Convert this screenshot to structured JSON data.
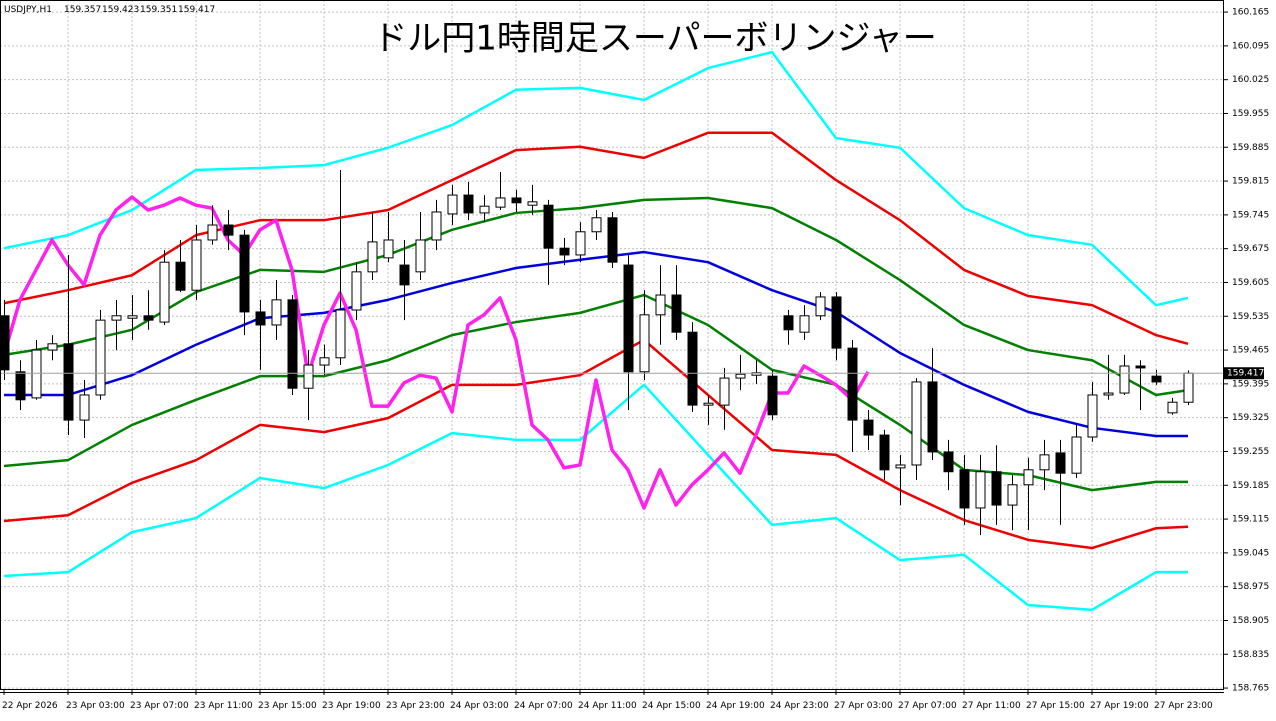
{
  "chart_data": {
    "type": "candlestick",
    "title": "ドル円1時間足スーパーボリンジャー",
    "symbol": "USDJPY,H1",
    "header_values": [
      159.357,
      159.423,
      159.351,
      159.417
    ],
    "last_price": 159.417,
    "ylim": [
      158.761,
      160.19
    ],
    "yticks": [
      160.165,
      160.095,
      160.025,
      159.955,
      159.885,
      159.815,
      159.745,
      159.675,
      159.605,
      159.535,
      159.465,
      159.395,
      159.325,
      159.255,
      159.185,
      159.115,
      159.045,
      158.975,
      158.905,
      158.835,
      158.765
    ],
    "grid": true,
    "categories": [
      "22 Apr 2026",
      null,
      null,
      null,
      "23 Apr 03:00",
      null,
      null,
      null,
      "23 Apr 07:00",
      null,
      null,
      null,
      "23 Apr 11:00",
      null,
      null,
      null,
      "23 Apr 15:00",
      null,
      null,
      null,
      "23 Apr 19:00",
      null,
      null,
      null,
      "23 Apr 23:00",
      null,
      null,
      null,
      "24 Apr 03:00",
      null,
      null,
      null,
      "24 Apr 07:00",
      null,
      null,
      null,
      "24 Apr 11:00",
      null,
      null,
      null,
      "24 Apr 15:00",
      null,
      null,
      null,
      "24 Apr 19:00",
      null,
      null,
      null,
      "24 Apr 23:00",
      null,
      null,
      null,
      "27 Apr 03:00",
      null,
      null,
      null,
      "27 Apr 07:00",
      null,
      null,
      null,
      "27 Apr 11:00",
      null,
      null,
      null,
      "27 Apr 15:00",
      null,
      null,
      null,
      "27 Apr 19:00",
      null,
      null,
      null,
      "27 Apr 23:00",
      null,
      null
    ],
    "open": [
      159.536,
      159.42,
      159.366,
      159.465,
      159.478,
      159.32,
      159.372,
      159.527,
      159.531,
      159.536,
      159.523,
      159.647,
      159.589,
      159.693,
      159.724,
      159.703,
      159.544,
      159.517,
      159.569,
      159.386,
      159.434,
      159.449,
      159.548,
      159.627,
      159.656,
      159.641,
      159.627,
      159.693,
      159.747,
      159.786,
      159.749,
      159.761,
      159.78,
      159.765,
      159.765,
      159.676,
      159.662,
      159.71,
      159.739,
      159.641,
      159.42,
      159.538,
      159.579,
      159.502,
      159.351,
      159.351,
      159.407,
      159.413,
      159.411,
      159.536,
      159.502,
      159.536,
      159.575,
      159.469,
      159.32,
      159.289,
      159.221,
      159.227,
      159.399,
      159.254,
      159.217,
      159.138,
      159.213,
      159.144,
      159.186,
      159.217,
      159.252,
      159.21,
      159.285,
      159.372,
      159.376,
      159.432,
      159.411,
      159.335,
      159.357
    ],
    "high": [
      159.569,
      159.444,
      159.486,
      159.496,
      159.662,
      159.403,
      159.548,
      159.569,
      159.579,
      159.589,
      159.672,
      159.693,
      159.724,
      159.765,
      159.755,
      159.714,
      159.569,
      159.61,
      159.579,
      159.465,
      159.476,
      159.838,
      159.647,
      159.751,
      159.751,
      159.693,
      159.751,
      159.776,
      159.807,
      159.813,
      159.786,
      159.834,
      159.797,
      159.807,
      159.776,
      159.697,
      159.73,
      159.755,
      159.751,
      159.662,
      159.589,
      159.641,
      159.641,
      159.523,
      159.372,
      159.428,
      159.455,
      159.444,
      159.424,
      159.548,
      159.558,
      159.585,
      159.585,
      159.486,
      159.341,
      159.3,
      159.248,
      159.407,
      159.469,
      159.279,
      159.248,
      159.248,
      159.268,
      159.206,
      159.242,
      159.279,
      159.279,
      159.31,
      159.399,
      159.455,
      159.455,
      159.444,
      159.424,
      159.366,
      159.423
    ],
    "low": [
      159.403,
      159.341,
      159.362,
      159.444,
      159.289,
      159.283,
      159.362,
      159.465,
      159.486,
      159.507,
      159.517,
      159.585,
      159.569,
      159.683,
      159.672,
      159.496,
      159.424,
      159.486,
      159.372,
      159.32,
      159.413,
      159.434,
      159.527,
      159.61,
      159.647,
      159.527,
      159.61,
      159.672,
      159.724,
      159.734,
      159.73,
      159.755,
      159.751,
      159.745,
      159.6,
      159.641,
      159.647,
      159.693,
      159.635,
      159.341,
      159.403,
      159.476,
      159.486,
      159.337,
      159.31,
      159.3,
      159.382,
      159.395,
      159.32,
      159.476,
      159.486,
      159.527,
      159.444,
      159.254,
      159.258,
      159.196,
      159.144,
      159.196,
      159.237,
      159.175,
      159.103,
      159.082,
      159.103,
      159.092,
      159.092,
      159.175,
      159.103,
      159.2,
      159.275,
      159.362,
      159.372,
      159.341,
      159.393,
      159.331,
      159.351
    ],
    "close": [
      159.424,
      159.362,
      159.465,
      159.478,
      159.32,
      159.372,
      159.527,
      159.536,
      159.536,
      159.527,
      159.647,
      159.589,
      159.693,
      159.724,
      159.703,
      159.544,
      159.517,
      159.569,
      159.386,
      159.434,
      159.449,
      159.548,
      159.627,
      159.689,
      159.693,
      159.6,
      159.693,
      159.751,
      159.786,
      159.749,
      159.763,
      159.78,
      159.77,
      159.772,
      159.676,
      159.662,
      159.71,
      159.739,
      159.647,
      159.42,
      159.538,
      159.579,
      159.502,
      159.351,
      159.355,
      159.407,
      159.415,
      159.418,
      159.331,
      159.507,
      159.536,
      159.575,
      159.469,
      159.32,
      159.289,
      159.217,
      159.227,
      159.399,
      159.254,
      159.213,
      159.138,
      159.213,
      159.144,
      159.186,
      159.217,
      159.248,
      159.21,
      159.285,
      159.372,
      159.376,
      159.432,
      159.428,
      159.399,
      159.357,
      159.417
    ],
    "series": [
      {
        "color": "#00ffff",
        "x": [
          0,
          4,
          8,
          12,
          16,
          20,
          24,
          28,
          32,
          36,
          40,
          44,
          48,
          52,
          56,
          60,
          64,
          68,
          72,
          74
        ],
        "values": [
          159.676,
          159.703,
          159.755,
          159.838,
          159.842,
          159.848,
          159.884,
          159.931,
          160.004,
          160.008,
          159.983,
          160.049,
          160.082,
          159.904,
          159.884,
          159.759,
          159.703,
          159.683,
          159.558,
          159.573
        ]
      },
      {
        "color": "#ee0000",
        "x": [
          0,
          4,
          8,
          12,
          16,
          20,
          24,
          28,
          32,
          36,
          40,
          44,
          48,
          52,
          56,
          60,
          64,
          68,
          72,
          74
        ],
        "values": [
          159.562,
          159.589,
          159.62,
          159.703,
          159.734,
          159.734,
          159.755,
          159.817,
          159.879,
          159.886,
          159.863,
          159.915,
          159.915,
          159.817,
          159.734,
          159.631,
          159.577,
          159.558,
          159.496,
          159.478
        ]
      },
      {
        "color": "#008000",
        "x": [
          0,
          4,
          8,
          12,
          16,
          20,
          24,
          28,
          32,
          36,
          40,
          44,
          48,
          52,
          56,
          60,
          64,
          68,
          72,
          74
        ],
        "values": [
          159.455,
          159.476,
          159.507,
          159.585,
          159.631,
          159.627,
          159.662,
          159.714,
          159.749,
          159.759,
          159.776,
          159.78,
          159.759,
          159.693,
          159.61,
          159.517,
          159.465,
          159.444,
          159.372,
          159.382
        ]
      },
      {
        "color": "#0000dd",
        "x": [
          0,
          4,
          8,
          12,
          16,
          20,
          24,
          28,
          32,
          36,
          40,
          44,
          48,
          52,
          56,
          60,
          64,
          68,
          72,
          74
        ],
        "values": [
          159.372,
          159.372,
          159.413,
          159.476,
          159.531,
          159.542,
          159.569,
          159.604,
          159.635,
          159.652,
          159.668,
          159.647,
          159.589,
          159.544,
          159.459,
          159.393,
          159.337,
          159.304,
          159.287,
          159.287
        ]
      },
      {
        "color": "#008000",
        "x": [
          0,
          4,
          8,
          12,
          16,
          20,
          24,
          28,
          32,
          36,
          40,
          44,
          48,
          52,
          56,
          60,
          64,
          68,
          72,
          74
        ],
        "values": [
          159.225,
          159.237,
          159.31,
          159.362,
          159.411,
          159.411,
          159.444,
          159.496,
          159.523,
          159.542,
          159.579,
          159.517,
          159.424,
          159.393,
          159.31,
          159.217,
          159.206,
          159.175,
          159.192,
          159.192
        ]
      },
      {
        "color": "#ee0000",
        "x": [
          0,
          4,
          8,
          12,
          16,
          20,
          24,
          28,
          32,
          36,
          40,
          44,
          48,
          52,
          56,
          60,
          64,
          68,
          72,
          74
        ],
        "values": [
          159.111,
          159.123,
          159.19,
          159.237,
          159.31,
          159.295,
          159.324,
          159.393,
          159.393,
          159.413,
          159.486,
          159.372,
          159.258,
          159.248,
          159.175,
          159.113,
          159.072,
          159.055,
          159.096,
          159.099
        ]
      },
      {
        "color": "#00ffff",
        "x": [
          0,
          4,
          8,
          12,
          16,
          20,
          24,
          28,
          32,
          36,
          40,
          44,
          48,
          52,
          56,
          60,
          64,
          68,
          72,
          74
        ],
        "values": [
          158.997,
          159.005,
          159.088,
          159.117,
          159.2,
          159.179,
          159.227,
          159.293,
          159.279,
          159.279,
          159.393,
          159.248,
          159.103,
          159.117,
          159.03,
          159.041,
          158.937,
          158.927,
          159.005,
          159.005
        ]
      },
      {
        "color": "#ff22ee",
        "values": [
          159.455,
          159.569,
          159.631,
          159.693,
          159.641,
          159.6,
          159.703,
          159.755,
          159.782,
          159.755,
          159.765,
          159.78,
          159.765,
          159.759,
          159.693,
          159.662,
          159.714,
          159.734,
          159.631,
          159.413,
          159.517,
          159.583,
          159.507,
          159.349,
          159.349,
          159.397,
          159.413,
          159.407,
          159.337,
          159.517,
          159.538,
          159.573,
          159.486,
          159.31,
          159.279,
          159.221,
          159.227,
          159.403,
          159.258,
          159.217,
          159.138,
          159.217,
          159.144,
          159.186,
          159.217,
          159.252,
          159.21,
          159.289,
          159.376,
          159.376,
          159.432,
          159.413,
          159.393,
          159.362,
          159.42,
          null,
          null,
          null,
          null,
          null,
          null,
          null,
          null,
          null,
          null,
          null,
          null,
          null,
          null,
          null,
          null,
          null,
          null,
          null,
          null
        ]
      }
    ]
  }
}
